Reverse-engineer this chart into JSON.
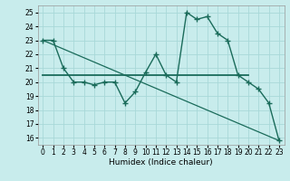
{
  "title": "",
  "xlabel": "Humidex (Indice chaleur)",
  "background_color": "#c8ecec",
  "line_color": "#1a6b5a",
  "grid_color": "#a8d8d8",
  "xlim": [
    -0.5,
    23.5
  ],
  "ylim": [
    15.5,
    25.5
  ],
  "xticks": [
    0,
    1,
    2,
    3,
    4,
    5,
    6,
    7,
    8,
    9,
    10,
    11,
    12,
    13,
    14,
    15,
    16,
    17,
    18,
    19,
    20,
    21,
    22,
    23
  ],
  "yticks": [
    16,
    17,
    18,
    19,
    20,
    21,
    22,
    23,
    24,
    25
  ],
  "curve1_x": [
    0,
    1,
    2,
    3,
    4,
    5,
    6,
    7,
    8,
    9,
    10,
    11,
    12,
    13,
    14,
    15,
    16,
    17,
    18,
    19,
    20,
    21,
    22,
    23
  ],
  "curve1_y": [
    23.0,
    23.0,
    21.0,
    20.0,
    20.0,
    19.8,
    20.0,
    20.0,
    18.5,
    19.3,
    20.7,
    22.0,
    20.5,
    20.0,
    25.0,
    24.5,
    24.7,
    23.5,
    23.0,
    20.5,
    20.0,
    19.5,
    18.5,
    15.8
  ],
  "curve2_x": [
    0,
    23
  ],
  "curve2_y": [
    23.0,
    15.8
  ],
  "hline_x": [
    0,
    20.0
  ],
  "hline_y": [
    20.5,
    20.5
  ]
}
